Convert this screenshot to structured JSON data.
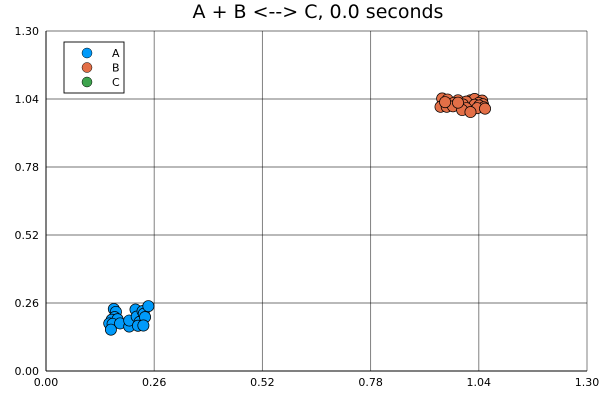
{
  "chart_data": {
    "type": "scatter",
    "title": "A + B <--> C, 0.0 seconds",
    "xlabel": "",
    "ylabel": "",
    "xlim": [
      0,
      1.3
    ],
    "ylim": [
      0,
      1.3
    ],
    "x_ticks": [
      0.0,
      0.26,
      0.52,
      0.78,
      1.04,
      1.3
    ],
    "y_ticks": [
      0.0,
      0.26,
      0.52,
      0.78,
      1.04,
      1.3
    ],
    "x_tick_labels": [
      "0.00",
      "0.26",
      "0.52",
      "0.78",
      "1.04",
      "1.30"
    ],
    "y_tick_labels": [
      "0.00",
      "0.26",
      "0.52",
      "0.78",
      "1.04",
      "1.30"
    ],
    "grid": true,
    "legend_position": "top-left",
    "series": [
      {
        "name": "A",
        "color": "#009AFA",
        "points": [
          [
            0.163,
            0.237
          ],
          [
            0.168,
            0.226
          ],
          [
            0.165,
            0.206
          ],
          [
            0.158,
            0.196
          ],
          [
            0.172,
            0.198
          ],
          [
            0.152,
            0.182
          ],
          [
            0.16,
            0.18
          ],
          [
            0.178,
            0.182
          ],
          [
            0.156,
            0.158
          ],
          [
            0.2,
            0.17
          ],
          [
            0.2,
            0.193
          ],
          [
            0.215,
            0.235
          ],
          [
            0.218,
            0.208
          ],
          [
            0.225,
            0.188
          ],
          [
            0.232,
            0.229
          ],
          [
            0.235,
            0.219
          ],
          [
            0.238,
            0.206
          ],
          [
            0.246,
            0.248
          ],
          [
            0.221,
            0.173
          ],
          [
            0.234,
            0.174
          ]
        ]
      },
      {
        "name": "B",
        "color": "#E36F47",
        "points": [
          [
            0.952,
            1.042
          ],
          [
            0.965,
            1.038
          ],
          [
            0.99,
            1.035
          ],
          [
            1.02,
            1.035
          ],
          [
            1.03,
            1.04
          ],
          [
            1.048,
            1.034
          ],
          [
            0.98,
            1.025
          ],
          [
            1.04,
            1.025
          ],
          [
            0.955,
            1.015
          ],
          [
            0.948,
            1.01
          ],
          [
            1.01,
            1.03
          ],
          [
            1.05,
            1.02
          ],
          [
            1.002,
            1.019
          ],
          [
            1.03,
            1.018
          ],
          [
            1.041,
            1.015
          ],
          [
            0.963,
            1.01
          ],
          [
            0.978,
            1.012
          ],
          [
            1.052,
            1.008
          ],
          [
            1.01,
            1.005
          ],
          [
            1.036,
            1.005
          ],
          [
            1.055,
            1.003
          ],
          [
            1.0,
            0.998
          ],
          [
            1.02,
            0.99
          ],
          [
            0.99,
            1.026
          ],
          [
            0.959,
            1.028
          ]
        ]
      },
      {
        "name": "C",
        "color": "#3EA44E",
        "points": []
      }
    ]
  }
}
